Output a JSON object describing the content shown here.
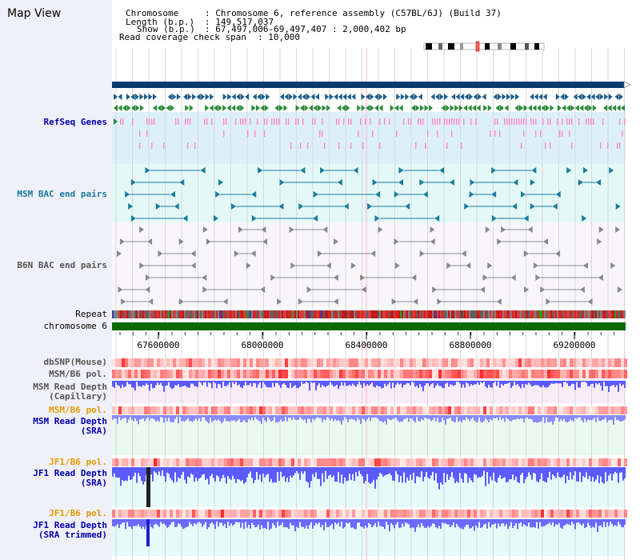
{
  "title": "Map View",
  "header": {
    "chromosome_label": "Chromosome",
    "chromosome_value": ": Chromosome 6, reference assembly (C57BL/6J) (Build 37)",
    "length_label": "Length (b.p.)",
    "length_value": ": 149,517,037",
    "show_label": "Show (b.p.)",
    "show_value": ": 67,497,006-69,497,407 : 2,000,402 bp",
    "coverage_label": "Read coverage check span",
    "coverage_value": ": 10,000"
  },
  "tracks": {
    "refseq": "RefSeq Genes",
    "msm_bac": "MSM BAC end pairs",
    "b6n_bac": "B6N BAC end pairs",
    "repeat": "Repeat",
    "chromosome": "chromosome 6",
    "dbsnp": "dbSNP(Mouse)",
    "msm_b6_pol": "MSM/B6 pol.",
    "msm_depth_cap_1": "MSM Read Depth",
    "msm_depth_cap_2": "(Capillary)",
    "msm_b6_pol_2": "MSM/B6 pol.",
    "msm_depth_sra_1": "MSM Read Depth",
    "msm_depth_sra_2": "(SRA)",
    "jf1_b6_pol": "JF1/B6 pol.",
    "jf1_depth_sra_1": "JF1 Read Depth",
    "jf1_depth_sra_2": "(SRA)",
    "jf1_b6_pol_2": "JF1/B6 pol.",
    "jf1_depth_trim_1": "JF1 Read Depth",
    "jf1_depth_trim_2": "(SRA trimmed)"
  },
  "axis": {
    "ticks": [
      "67600000",
      "68000000",
      "68400000",
      "68800000",
      "69200000"
    ]
  },
  "colors": {
    "navy": "#0a3a6e",
    "refseq_blue": "#1d5d8a",
    "refseq_green": "#2a8a3a",
    "pink": "#ff88c8",
    "teal": "#1a7c9c",
    "gray": "#888888",
    "label_blue": "#0000aa",
    "label_orange": "#e89a00",
    "chrom_green": "#0a6a0a",
    "depth_blue": "#4a4aff"
  }
}
